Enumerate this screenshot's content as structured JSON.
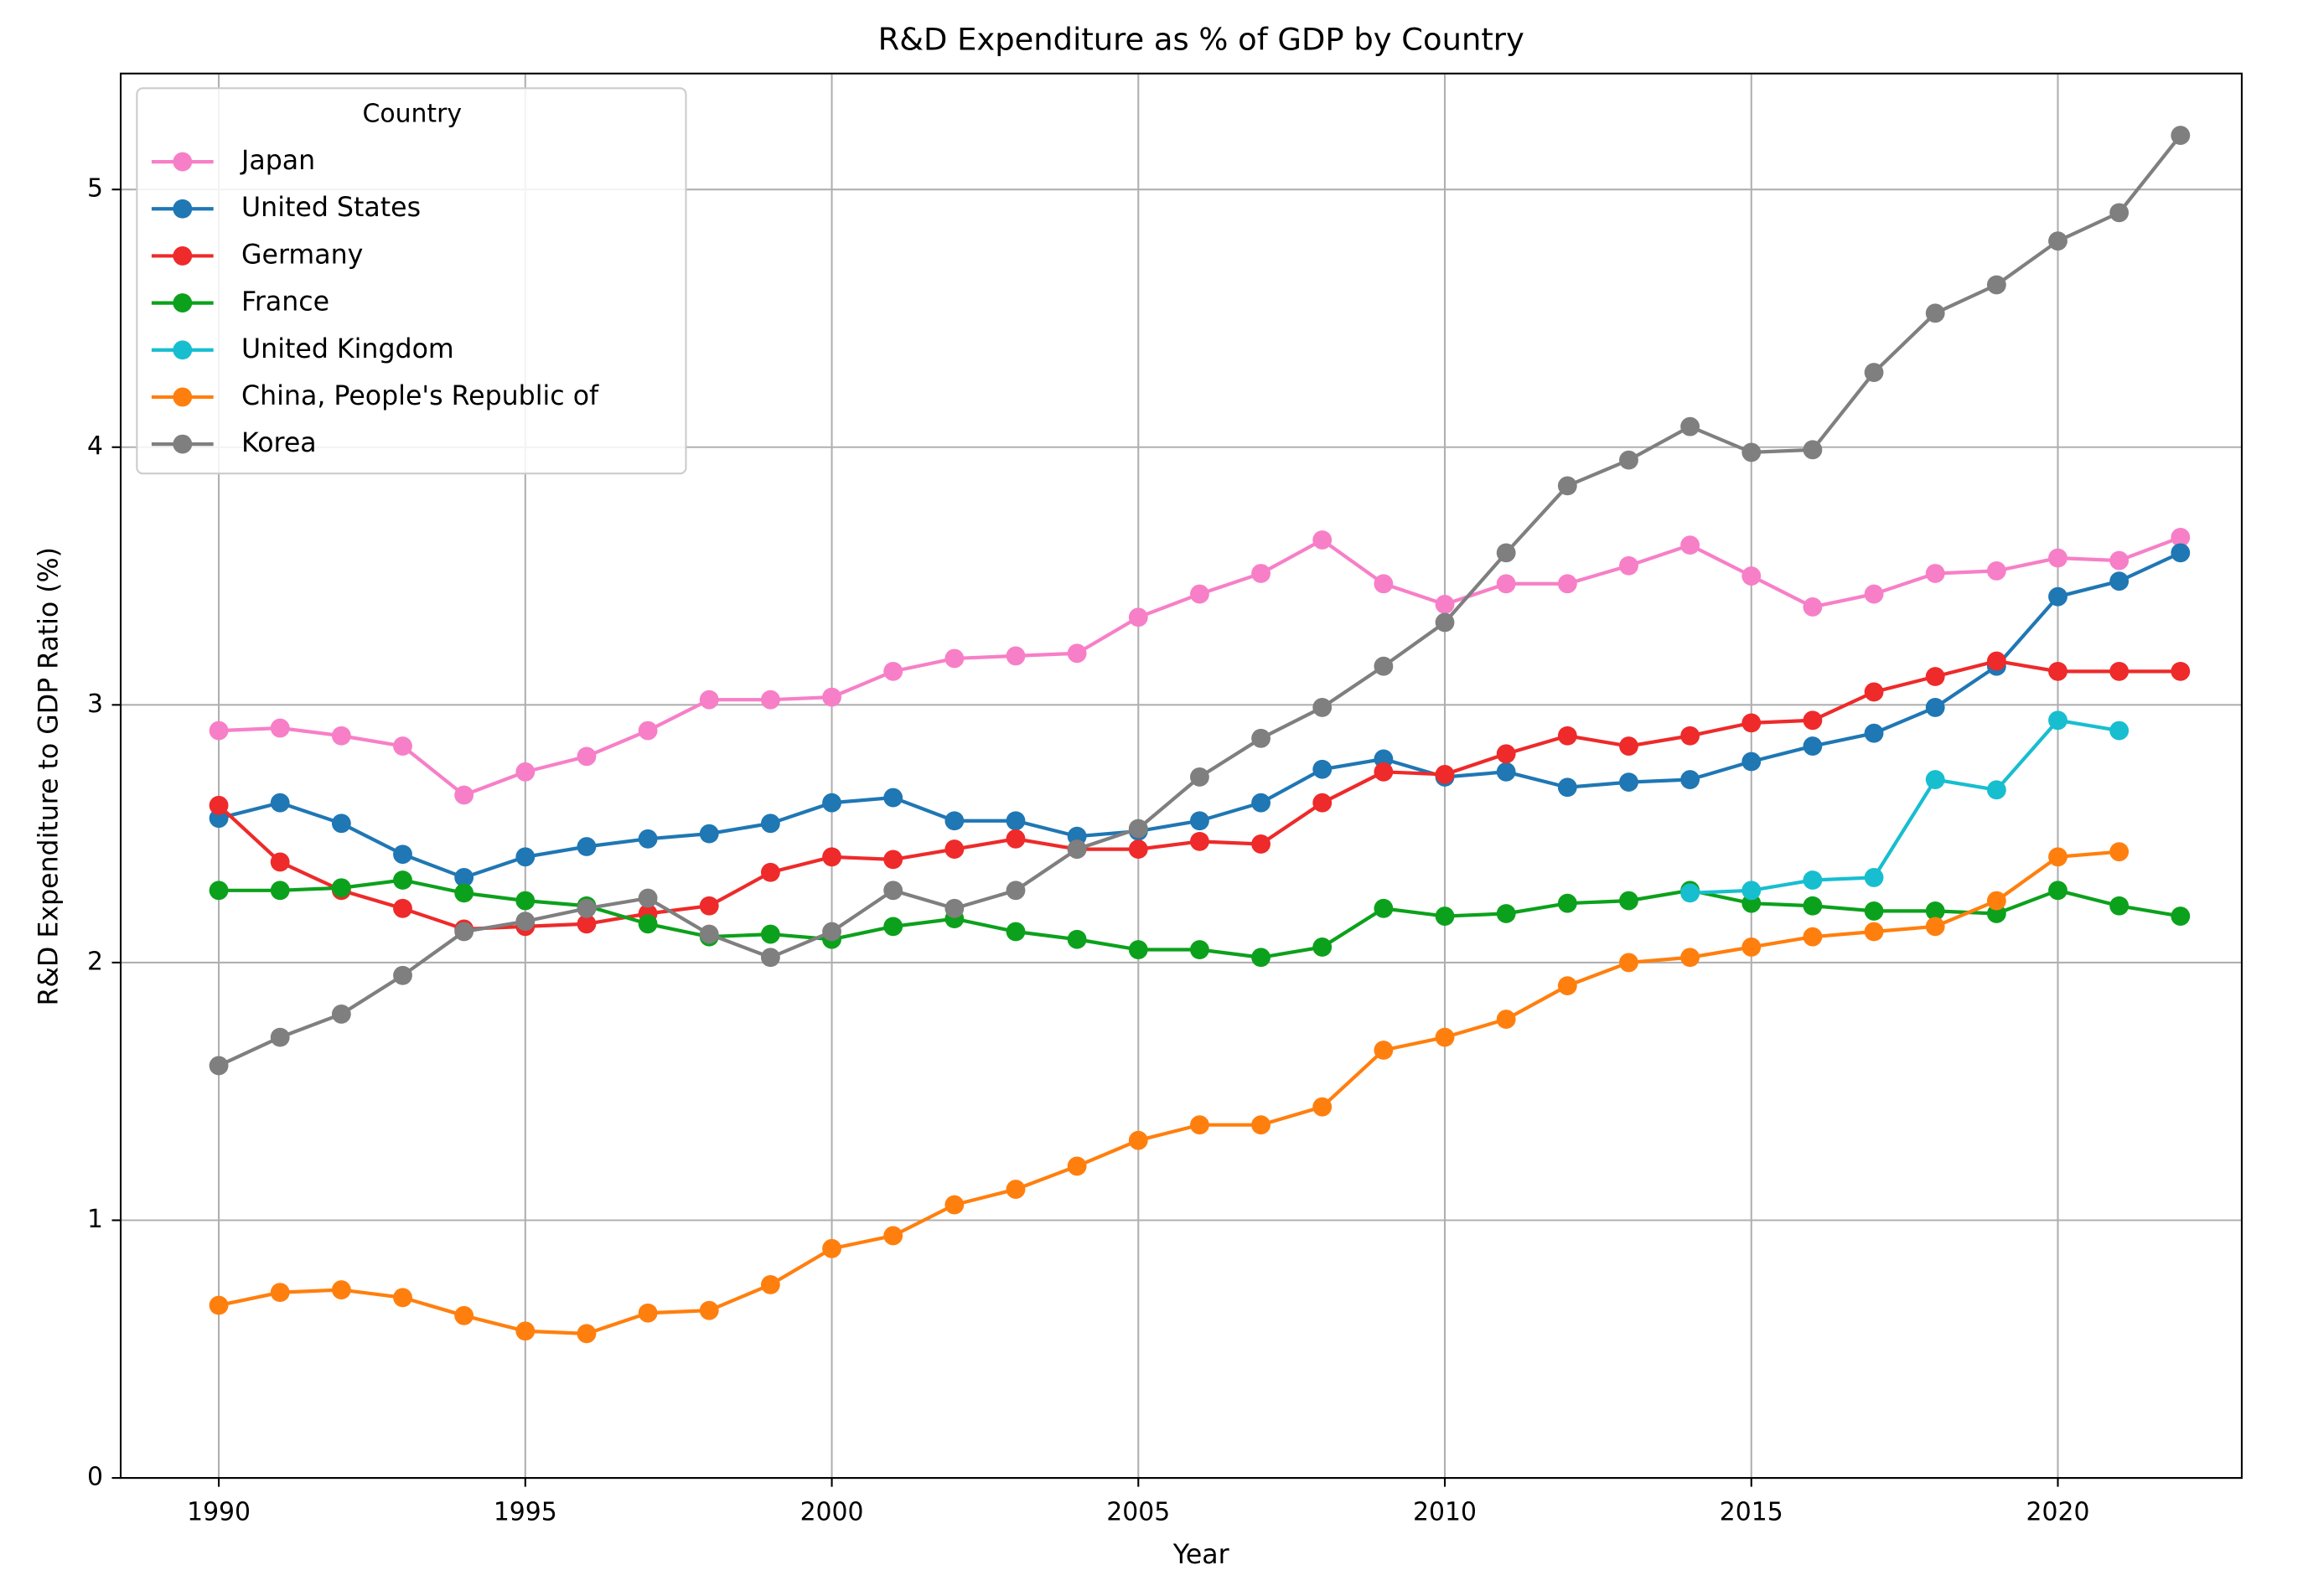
{
  "chart_data": {
    "type": "line",
    "title": "R&D Expenditure as % of GDP by Country",
    "xlabel": "Year",
    "ylabel": "R&D Expenditure to GDP Ratio (%)",
    "legend_title": "Country",
    "legend": "upper left",
    "grid": true,
    "x": [
      1990,
      1991,
      1992,
      1993,
      1994,
      1995,
      1996,
      1997,
      1998,
      1999,
      2000,
      2001,
      2002,
      2003,
      2004,
      2005,
      2006,
      2007,
      2008,
      2009,
      2010,
      2011,
      2012,
      2013,
      2014,
      2015,
      2016,
      2017,
      2018,
      2019,
      2020,
      2021,
      2022
    ],
    "xlim": [
      1988.4,
      2023
    ],
    "xticks": [
      1990,
      1995,
      2000,
      2005,
      2010,
      2015,
      2020
    ],
    "ylim": [
      0,
      5.45
    ],
    "yticks": [
      0,
      1,
      2,
      3,
      4,
      5
    ],
    "series": [
      {
        "name": "Japan",
        "color": "#f77fc7",
        "values": [
          2.9,
          2.91,
          2.88,
          2.84,
          2.65,
          2.74,
          2.8,
          2.9,
          3.02,
          3.02,
          3.03,
          3.13,
          3.18,
          3.19,
          3.2,
          3.34,
          3.43,
          3.51,
          3.64,
          3.47,
          3.39,
          3.47,
          3.47,
          3.54,
          3.62,
          3.5,
          3.38,
          3.43,
          3.51,
          3.52,
          3.57,
          3.56,
          3.65
        ]
      },
      {
        "name": "United States",
        "color": "#1f77b4",
        "values": [
          2.56,
          2.62,
          2.54,
          2.42,
          2.33,
          2.41,
          2.45,
          2.48,
          2.5,
          2.54,
          2.62,
          2.64,
          2.55,
          2.55,
          2.49,
          2.51,
          2.55,
          2.62,
          2.75,
          2.79,
          2.72,
          2.74,
          2.68,
          2.7,
          2.71,
          2.78,
          2.84,
          2.89,
          2.99,
          3.15,
          3.42,
          3.48,
          3.59
        ]
      },
      {
        "name": "Germany",
        "color": "#ee2a2a",
        "values": [
          2.61,
          2.39,
          2.28,
          2.21,
          2.13,
          2.14,
          2.15,
          2.19,
          2.22,
          2.35,
          2.41,
          2.4,
          2.44,
          2.48,
          2.44,
          2.44,
          2.47,
          2.46,
          2.62,
          2.74,
          2.73,
          2.81,
          2.88,
          2.84,
          2.88,
          2.93,
          2.94,
          3.05,
          3.11,
          3.17,
          3.13,
          3.13,
          3.13
        ]
      },
      {
        "name": "France",
        "color": "#0ca11c",
        "values": [
          2.28,
          2.28,
          2.29,
          2.32,
          2.27,
          2.24,
          2.22,
          2.15,
          2.1,
          2.11,
          2.09,
          2.14,
          2.17,
          2.12,
          2.09,
          2.05,
          2.05,
          2.02,
          2.06,
          2.21,
          2.18,
          2.19,
          2.23,
          2.24,
          2.28,
          2.23,
          2.22,
          2.2,
          2.2,
          2.19,
          2.28,
          2.22,
          2.18
        ]
      },
      {
        "name": "United Kingdom",
        "color": "#17becf",
        "values": [
          null,
          null,
          null,
          null,
          null,
          null,
          null,
          null,
          null,
          null,
          null,
          null,
          null,
          null,
          null,
          null,
          null,
          null,
          null,
          null,
          null,
          null,
          null,
          null,
          2.27,
          2.28,
          2.32,
          2.33,
          2.71,
          2.67,
          2.94,
          2.9,
          null
        ]
      },
      {
        "name": "China, People's Republic of",
        "color": "#ff7f0e",
        "values": [
          0.67,
          0.72,
          0.73,
          0.7,
          0.63,
          0.57,
          0.56,
          0.64,
          0.65,
          0.75,
          0.89,
          0.94,
          1.06,
          1.12,
          1.21,
          1.31,
          1.37,
          1.37,
          1.44,
          1.66,
          1.71,
          1.78,
          1.91,
          2.0,
          2.02,
          2.06,
          2.1,
          2.12,
          2.14,
          2.24,
          2.41,
          2.43,
          null
        ]
      },
      {
        "name": "Korea",
        "color": "#7f7f7f",
        "values": [
          1.6,
          1.71,
          1.8,
          1.95,
          2.12,
          2.16,
          2.21,
          2.25,
          2.11,
          2.02,
          2.12,
          2.28,
          2.21,
          2.28,
          2.44,
          2.52,
          2.72,
          2.87,
          2.99,
          3.15,
          3.32,
          3.59,
          3.85,
          3.95,
          4.08,
          3.98,
          3.99,
          4.29,
          4.52,
          4.63,
          4.8,
          4.91,
          5.21
        ]
      }
    ]
  }
}
